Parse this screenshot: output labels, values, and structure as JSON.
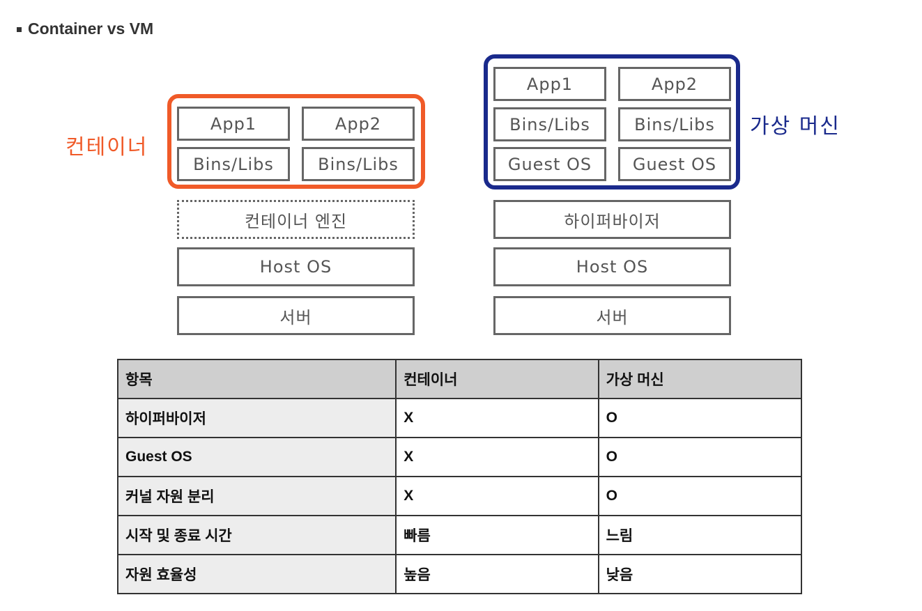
{
  "title": "Container vs VM",
  "colors": {
    "container_accent": "#f05a28",
    "vm_accent": "#1a2a8c",
    "box_border": "#666666",
    "header_bg": "#cfcfcf",
    "first_col_bg": "#ededed"
  },
  "container": {
    "label": "컨테이너",
    "app1": "App1",
    "app2": "App2",
    "libs1": "Bins/Libs",
    "libs2": "Bins/Libs",
    "engine": "컨테이너 엔진",
    "host_os": "Host OS",
    "server": "서버"
  },
  "vm": {
    "label": "가상 머신",
    "app1": "App1",
    "app2": "App2",
    "libs1": "Bins/Libs",
    "libs2": "Bins/Libs",
    "guest1": "Guest OS",
    "guest2": "Guest OS",
    "hypervisor": "하이퍼바이저",
    "host_os": "Host OS",
    "server": "서버"
  },
  "table": {
    "headers": [
      "항목",
      "컨테이너",
      "가상 머신"
    ],
    "rows": [
      [
        "하이퍼바이저",
        "X",
        "O"
      ],
      [
        "Guest OS",
        "X",
        "O"
      ],
      [
        "커널 자원 분리",
        "X",
        "O"
      ],
      [
        "시작 및 종료 시간",
        "빠름",
        "느림"
      ],
      [
        "자원 효율성",
        "높음",
        "낮음"
      ]
    ]
  }
}
